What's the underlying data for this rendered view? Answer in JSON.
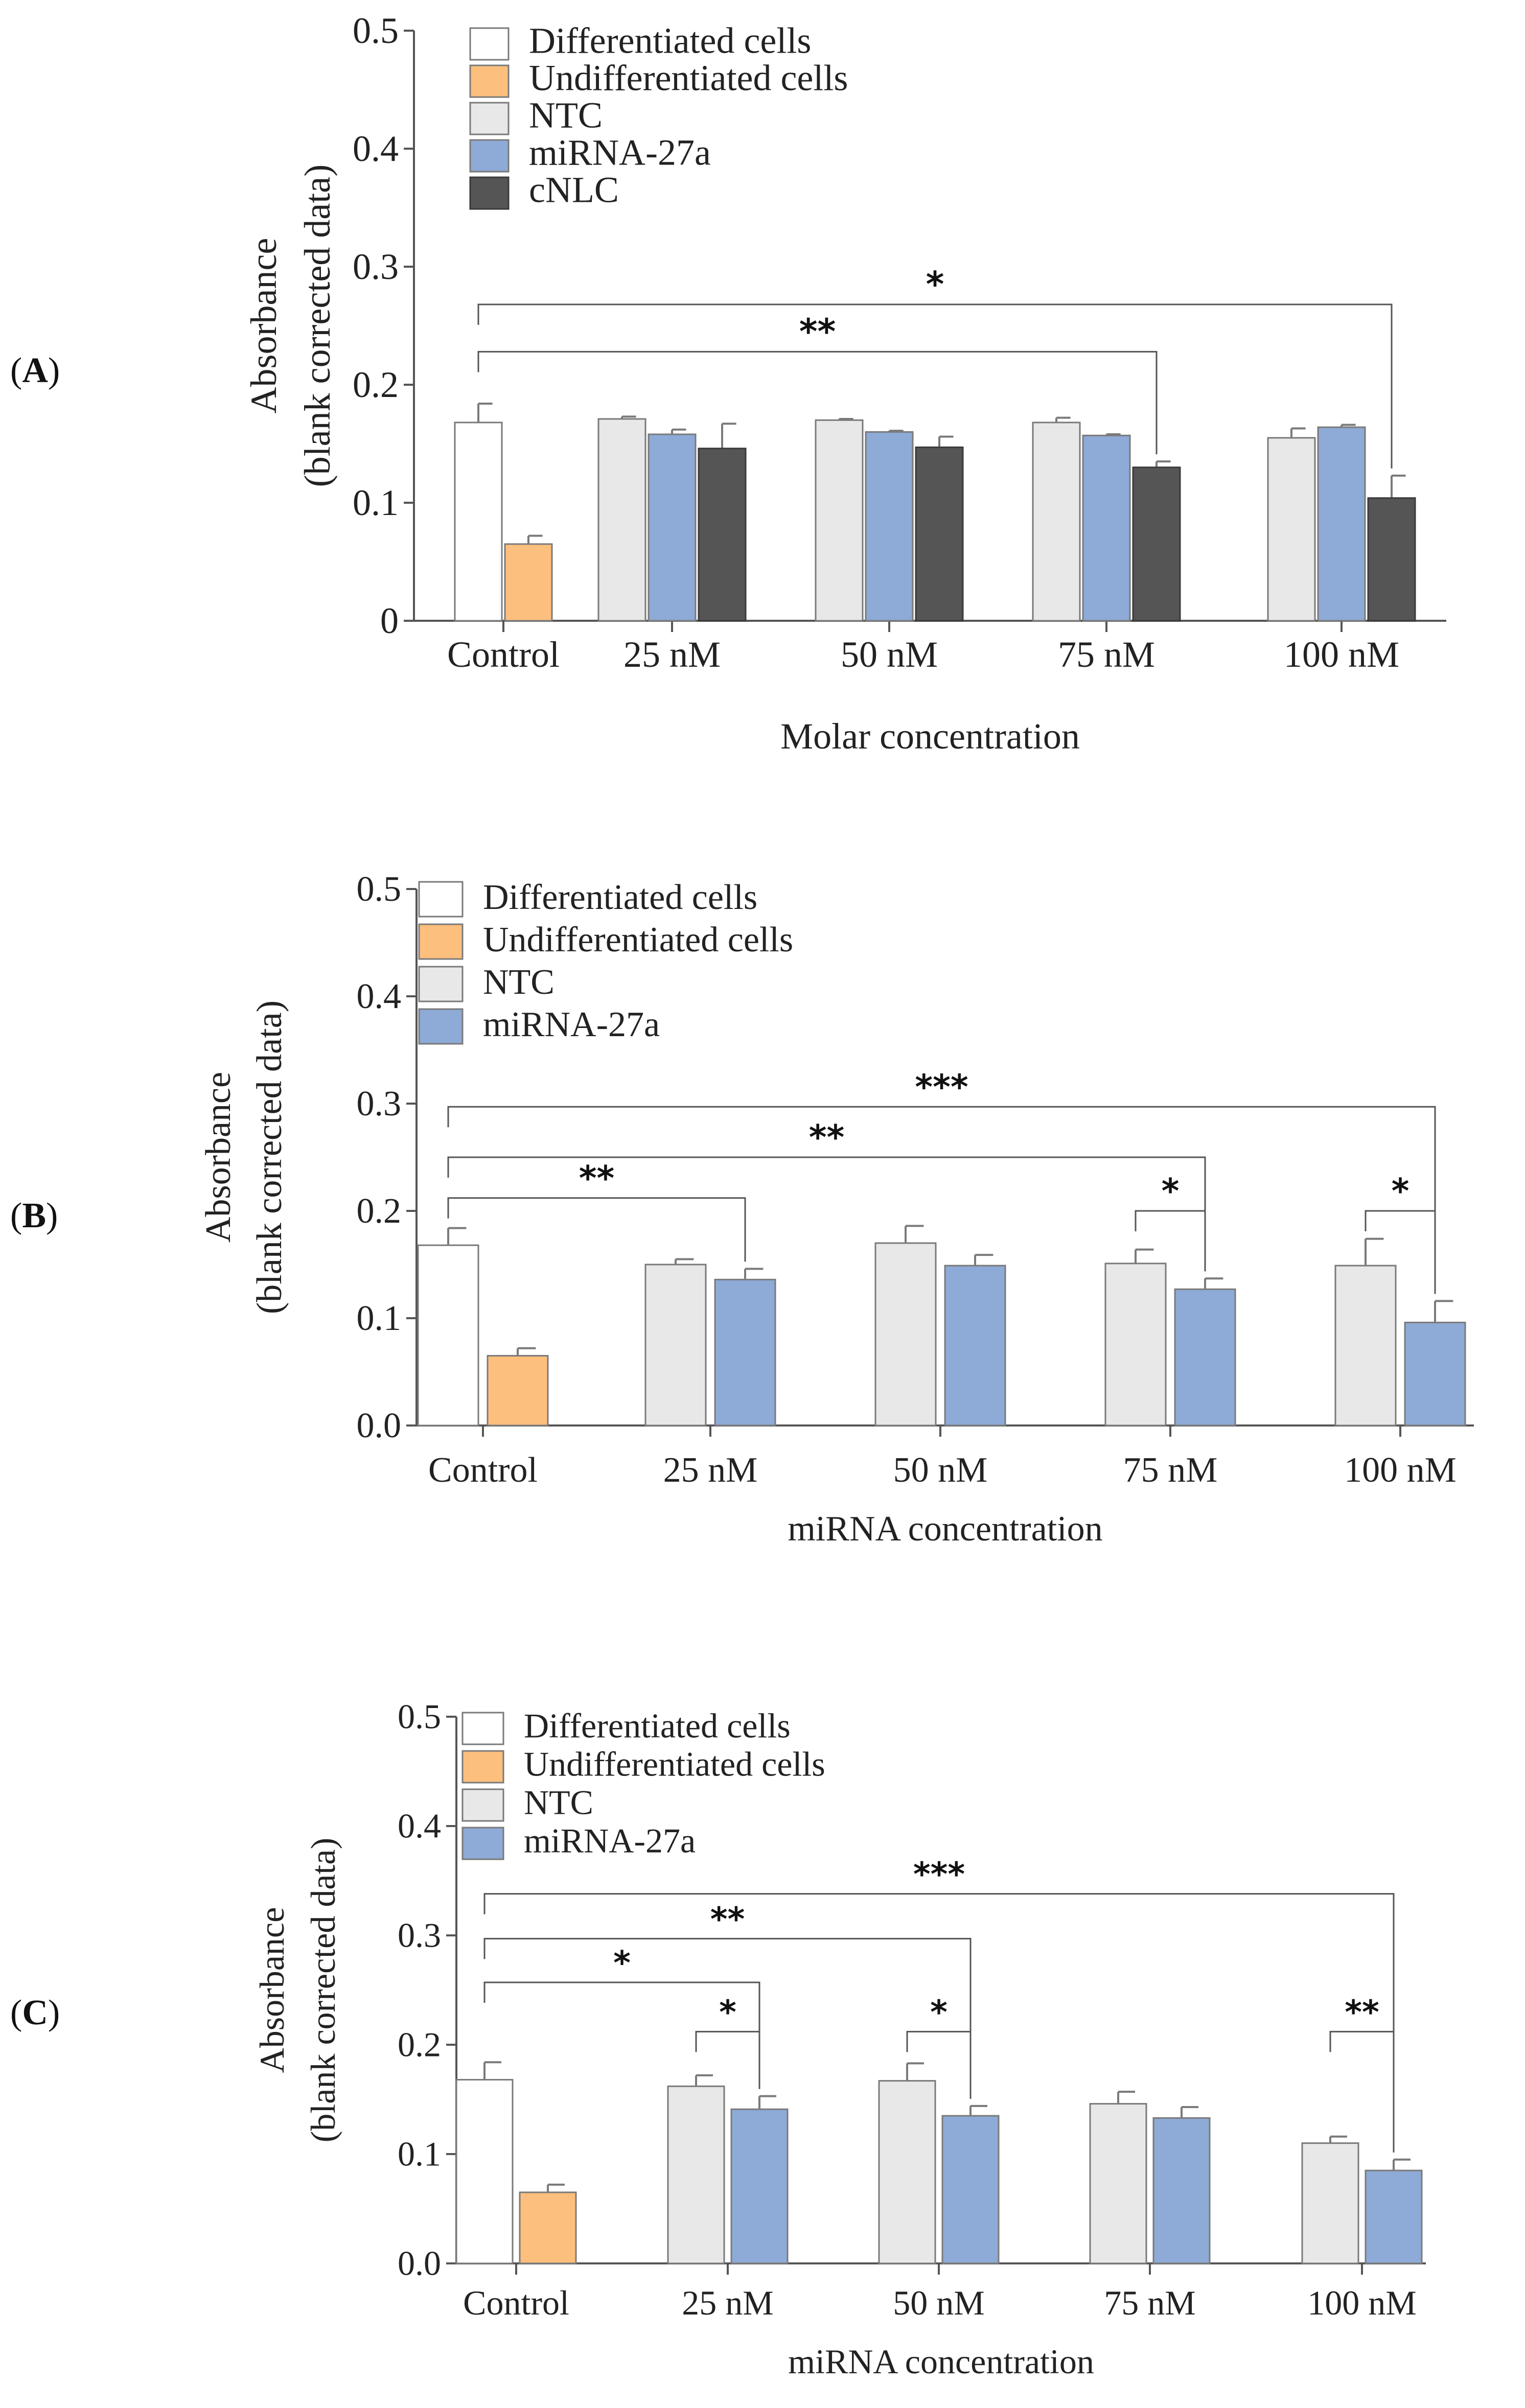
{
  "colors": {
    "differentiated": "#ffffff",
    "undifferentiated": "#fdbf7e",
    "ntc": "#e8e8e8",
    "mirna": "#8eaad6",
    "cnlc": "#555555",
    "axis": "#555555",
    "outline": "#7a7a7a"
  },
  "chart_data": [
    {
      "panel": "A",
      "type": "bar",
      "xlabel": "Molar concentration",
      "ylabel_lines": [
        "Absorbance",
        "(blank corrected data)"
      ],
      "ylim": [
        0,
        0.5
      ],
      "yticks": [
        "0",
        "0.1",
        "0.2",
        "0.3",
        "0.4",
        "0.5"
      ],
      "categories": [
        "Control",
        "25 nM",
        "50 nM",
        "75 nM",
        "100 nM"
      ],
      "legend": [
        {
          "label": "Differentiated cells",
          "color_key": "differentiated"
        },
        {
          "label": "Undifferentiated cells",
          "color_key": "undifferentiated"
        },
        {
          "label": "NTC",
          "color_key": "ntc"
        },
        {
          "label": "miRNA-27a",
          "color_key": "mirna"
        },
        {
          "label": "cNLC",
          "color_key": "cnlc"
        }
      ],
      "groups": [
        {
          "category": "Control",
          "bars": [
            {
              "series": "Differentiated cells",
              "value": 0.168,
              "err": 0.016
            },
            {
              "series": "Undifferentiated cells",
              "value": 0.065,
              "err": 0.007
            }
          ]
        },
        {
          "category": "25 nM",
          "bars": [
            {
              "series": "NTC",
              "value": 0.171,
              "err": 0.002
            },
            {
              "series": "miRNA-27a",
              "value": 0.158,
              "err": 0.004
            },
            {
              "series": "cNLC",
              "value": 0.146,
              "err": 0.021
            }
          ]
        },
        {
          "category": "50 nM",
          "bars": [
            {
              "series": "NTC",
              "value": 0.17,
              "err": 0.001
            },
            {
              "series": "miRNA-27a",
              "value": 0.16,
              "err": 0.001
            },
            {
              "series": "cNLC",
              "value": 0.147,
              "err": 0.009
            }
          ]
        },
        {
          "category": "75 nM",
          "bars": [
            {
              "series": "NTC",
              "value": 0.168,
              "err": 0.004
            },
            {
              "series": "miRNA-27a",
              "value": 0.157,
              "err": 0.001
            },
            {
              "series": "cNLC",
              "value": 0.13,
              "err": 0.005
            }
          ]
        },
        {
          "category": "100 nM",
          "bars": [
            {
              "series": "NTC",
              "value": 0.155,
              "err": 0.008
            },
            {
              "series": "miRNA-27a",
              "value": 0.164,
              "err": 0.002
            },
            {
              "series": "cNLC",
              "value": 0.104,
              "err": 0.019
            }
          ]
        }
      ],
      "significance": [
        {
          "from": "Control",
          "to": "100 nM cNLC",
          "label": "*",
          "y": 0.268
        },
        {
          "from": "Control",
          "to": "75 nM cNLC",
          "label": "**",
          "y": 0.228
        }
      ]
    },
    {
      "panel": "B",
      "type": "bar",
      "xlabel": "miRNA concentration",
      "ylabel_lines": [
        "Absorbance",
        "(blank corrected data)"
      ],
      "ylim": [
        0,
        0.5
      ],
      "yticks": [
        "0.0",
        "0.1",
        "0.2",
        "0.3",
        "0.4",
        "0.5"
      ],
      "categories": [
        "Control",
        "25 nM",
        "50 nM",
        "75 nM",
        "100 nM"
      ],
      "legend": [
        {
          "label": "Differentiated cells",
          "color_key": "differentiated"
        },
        {
          "label": "Undifferentiated cells",
          "color_key": "undifferentiated"
        },
        {
          "label": "NTC",
          "color_key": "ntc"
        },
        {
          "label": "miRNA-27a",
          "color_key": "mirna"
        }
      ],
      "groups": [
        {
          "category": "Control",
          "bars": [
            {
              "series": "Differentiated cells",
              "value": 0.168,
              "err": 0.016
            },
            {
              "series": "Undifferentiated cells",
              "value": 0.065,
              "err": 0.007
            }
          ]
        },
        {
          "category": "25 nM",
          "bars": [
            {
              "series": "NTC",
              "value": 0.15,
              "err": 0.005
            },
            {
              "series": "miRNA-27a",
              "value": 0.136,
              "err": 0.01
            }
          ]
        },
        {
          "category": "50 nM",
          "bars": [
            {
              "series": "NTC",
              "value": 0.17,
              "err": 0.016
            },
            {
              "series": "miRNA-27a",
              "value": 0.149,
              "err": 0.01
            }
          ]
        },
        {
          "category": "75 nM",
          "bars": [
            {
              "series": "NTC",
              "value": 0.151,
              "err": 0.013
            },
            {
              "series": "miRNA-27a",
              "value": 0.127,
              "err": 0.01
            }
          ]
        },
        {
          "category": "100 nM",
          "bars": [
            {
              "series": "NTC",
              "value": 0.149,
              "err": 0.025
            },
            {
              "series": "miRNA-27a",
              "value": 0.096,
              "err": 0.02
            }
          ]
        }
      ],
      "significance": [
        {
          "from": "Control",
          "to": "100 nM miRNA-27a",
          "label": "***",
          "y": 0.297
        },
        {
          "from": "Control",
          "to": "75 nM miRNA-27a",
          "label": "**",
          "y": 0.25
        },
        {
          "from": "Control",
          "to": "25 nM miRNA-27a",
          "label": "**",
          "y": 0.212
        },
        {
          "from": "75 nM NTC",
          "to": "75 nM miRNA-27a",
          "label": "*",
          "y": 0.2
        },
        {
          "from": "100 nM NTC",
          "to": "100 nM miRNA-27a",
          "label": "*",
          "y": 0.2
        }
      ]
    },
    {
      "panel": "C",
      "type": "bar",
      "xlabel": "miRNA concentration",
      "ylabel_lines": [
        "Absorbance",
        "(blank corrected data)"
      ],
      "ylim": [
        0,
        0.5
      ],
      "yticks": [
        "0.0",
        "0.1",
        "0.2",
        "0.3",
        "0.4",
        "0.5"
      ],
      "categories": [
        "Control",
        "25 nM",
        "50 nM",
        "75 nM",
        "100 nM"
      ],
      "legend": [
        {
          "label": "Differentiated cells",
          "color_key": "differentiated"
        },
        {
          "label": "Undifferentiated cells",
          "color_key": "undifferentiated"
        },
        {
          "label": "NTC",
          "color_key": "ntc"
        },
        {
          "label": "miRNA-27a",
          "color_key": "mirna"
        }
      ],
      "groups": [
        {
          "category": "Control",
          "bars": [
            {
              "series": "Differentiated cells",
              "value": 0.168,
              "err": 0.016
            },
            {
              "series": "Undifferentiated cells",
              "value": 0.065,
              "err": 0.007
            }
          ]
        },
        {
          "category": "25 nM",
          "bars": [
            {
              "series": "NTC",
              "value": 0.162,
              "err": 0.01
            },
            {
              "series": "miRNA-27a",
              "value": 0.141,
              "err": 0.012
            }
          ]
        },
        {
          "category": "50 nM",
          "bars": [
            {
              "series": "NTC",
              "value": 0.167,
              "err": 0.016
            },
            {
              "series": "miRNA-27a",
              "value": 0.135,
              "err": 0.009
            }
          ]
        },
        {
          "category": "75 nM",
          "bars": [
            {
              "series": "NTC",
              "value": 0.146,
              "err": 0.011
            },
            {
              "series": "miRNA-27a",
              "value": 0.133,
              "err": 0.01
            }
          ]
        },
        {
          "category": "100 nM",
          "bars": [
            {
              "series": "NTC",
              "value": 0.11,
              "err": 0.006
            },
            {
              "series": "miRNA-27a",
              "value": 0.085,
              "err": 0.01
            }
          ]
        }
      ],
      "significance": [
        {
          "from": "Control",
          "to": "100 nM miRNA-27a",
          "label": "***",
          "y": 0.338
        },
        {
          "from": "Control",
          "to": "50 nM miRNA-27a",
          "label": "**",
          "y": 0.297
        },
        {
          "from": "Control",
          "to": "25 nM miRNA-27a",
          "label": "*",
          "y": 0.257
        },
        {
          "from": "25 nM NTC",
          "to": "25 nM miRNA-27a",
          "label": "*",
          "y": 0.212
        },
        {
          "from": "50 nM NTC",
          "to": "50 nM miRNA-27a",
          "label": "*",
          "y": 0.212
        },
        {
          "from": "100 nM NTC",
          "to": "100 nM miRNA-27a",
          "label": "**",
          "y": 0.212
        }
      ]
    }
  ]
}
